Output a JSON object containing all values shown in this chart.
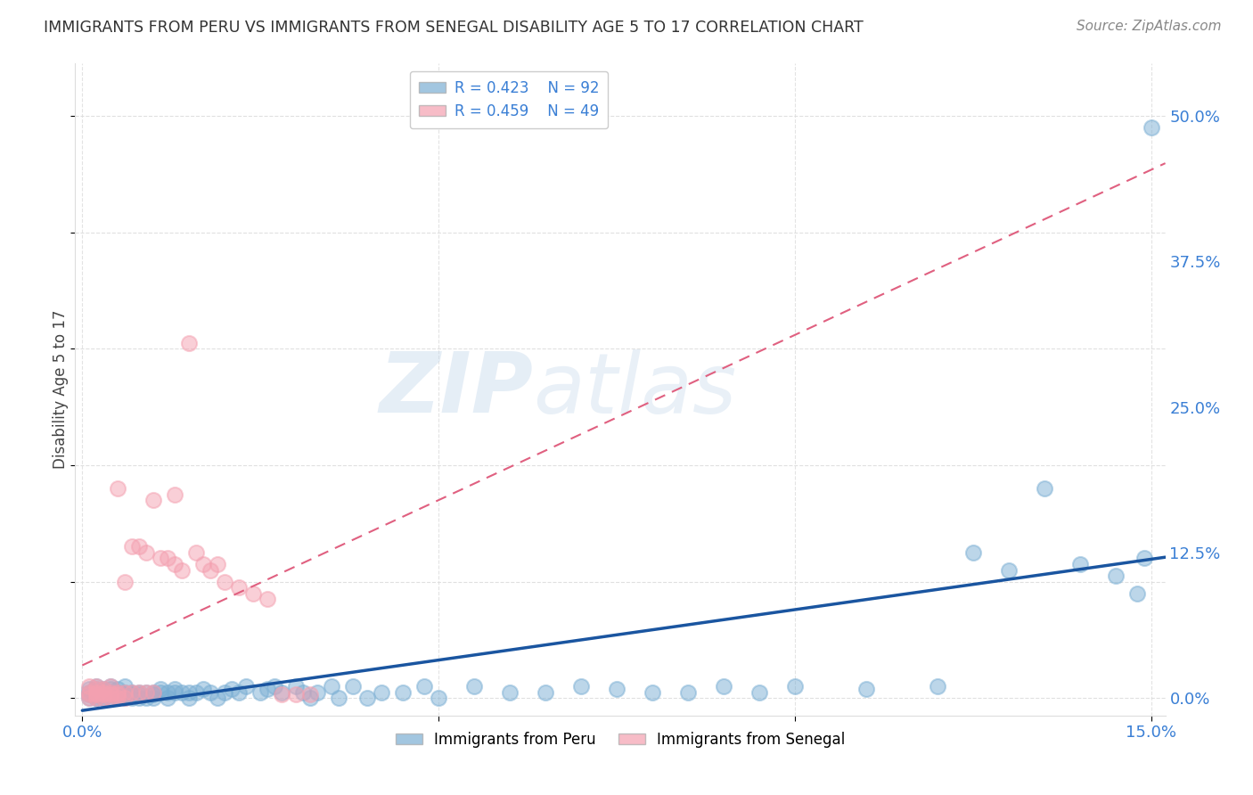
{
  "title": "IMMIGRANTS FROM PERU VS IMMIGRANTS FROM SENEGAL DISABILITY AGE 5 TO 17 CORRELATION CHART",
  "source": "Source: ZipAtlas.com",
  "ylabel": "Disability Age 5 to 17",
  "ytick_labels": [
    "0.0%",
    "12.5%",
    "25.0%",
    "37.5%",
    "50.0%"
  ],
  "ytick_values": [
    0.0,
    0.125,
    0.25,
    0.375,
    0.5
  ],
  "xlim": [
    -0.001,
    0.152
  ],
  "ylim": [
    -0.015,
    0.545
  ],
  "legend_peru_r": "R = 0.423",
  "legend_peru_n": "N = 92",
  "legend_senegal_r": "R = 0.459",
  "legend_senegal_n": "N = 49",
  "peru_color": "#7bafd4",
  "senegal_color": "#f4a0b0",
  "peru_line_color": "#1a55a0",
  "senegal_line_color": "#e06080",
  "watermark_color": "#c5d8ee",
  "background_color": "#ffffff",
  "grid_color": "#dddddd",
  "tick_color": "#3a7fd5",
  "peru_x": [
    0.001,
    0.001,
    0.001,
    0.001,
    0.002,
    0.002,
    0.002,
    0.002,
    0.002,
    0.002,
    0.003,
    0.003,
    0.003,
    0.003,
    0.003,
    0.004,
    0.004,
    0.004,
    0.004,
    0.004,
    0.005,
    0.005,
    0.005,
    0.005,
    0.006,
    0.006,
    0.006,
    0.006,
    0.007,
    0.007,
    0.007,
    0.008,
    0.008,
    0.008,
    0.009,
    0.009,
    0.01,
    0.01,
    0.01,
    0.011,
    0.011,
    0.012,
    0.012,
    0.013,
    0.013,
    0.014,
    0.015,
    0.015,
    0.016,
    0.017,
    0.018,
    0.019,
    0.02,
    0.021,
    0.022,
    0.023,
    0.025,
    0.026,
    0.027,
    0.028,
    0.03,
    0.031,
    0.032,
    0.033,
    0.035,
    0.036,
    0.038,
    0.04,
    0.042,
    0.045,
    0.048,
    0.05,
    0.055,
    0.06,
    0.065,
    0.07,
    0.075,
    0.08,
    0.085,
    0.09,
    0.095,
    0.1,
    0.11,
    0.12,
    0.125,
    0.13,
    0.135,
    0.14,
    0.145,
    0.148,
    0.149,
    0.15
  ],
  "peru_y": [
    0.005,
    0.003,
    0.0,
    0.008,
    0.005,
    0.0,
    0.003,
    0.008,
    0.0,
    0.01,
    0.005,
    0.0,
    0.003,
    0.008,
    0.0,
    0.005,
    0.0,
    0.003,
    0.008,
    0.01,
    0.005,
    0.0,
    0.003,
    0.008,
    0.005,
    0.0,
    0.003,
    0.01,
    0.005,
    0.0,
    0.003,
    0.005,
    0.0,
    0.003,
    0.005,
    0.0,
    0.005,
    0.0,
    0.003,
    0.005,
    0.008,
    0.005,
    0.0,
    0.005,
    0.008,
    0.005,
    0.005,
    0.0,
    0.005,
    0.008,
    0.005,
    0.0,
    0.005,
    0.008,
    0.005,
    0.01,
    0.005,
    0.008,
    0.01,
    0.005,
    0.01,
    0.005,
    0.0,
    0.005,
    0.01,
    0.0,
    0.01,
    0.0,
    0.005,
    0.005,
    0.01,
    0.0,
    0.01,
    0.005,
    0.005,
    0.01,
    0.008,
    0.005,
    0.005,
    0.01,
    0.005,
    0.01,
    0.008,
    0.01,
    0.125,
    0.11,
    0.18,
    0.115,
    0.105,
    0.09,
    0.12,
    0.49
  ],
  "senegal_x": [
    0.001,
    0.001,
    0.001,
    0.001,
    0.002,
    0.002,
    0.002,
    0.002,
    0.002,
    0.003,
    0.003,
    0.003,
    0.003,
    0.004,
    0.004,
    0.004,
    0.004,
    0.005,
    0.005,
    0.005,
    0.005,
    0.006,
    0.006,
    0.006,
    0.007,
    0.007,
    0.008,
    0.008,
    0.009,
    0.009,
    0.01,
    0.01,
    0.011,
    0.012,
    0.013,
    0.013,
    0.014,
    0.015,
    0.016,
    0.017,
    0.018,
    0.019,
    0.02,
    0.022,
    0.024,
    0.026,
    0.028,
    0.03,
    0.032
  ],
  "senegal_y": [
    0.005,
    0.0,
    0.01,
    0.003,
    0.005,
    0.0,
    0.003,
    0.01,
    0.008,
    0.005,
    0.0,
    0.008,
    0.003,
    0.005,
    0.0,
    0.003,
    0.01,
    0.005,
    0.0,
    0.003,
    0.18,
    0.005,
    0.0,
    0.1,
    0.005,
    0.13,
    0.005,
    0.13,
    0.005,
    0.125,
    0.005,
    0.17,
    0.12,
    0.12,
    0.115,
    0.175,
    0.11,
    0.305,
    0.125,
    0.115,
    0.11,
    0.115,
    0.1,
    0.095,
    0.09,
    0.085,
    0.003,
    0.003,
    0.003
  ]
}
